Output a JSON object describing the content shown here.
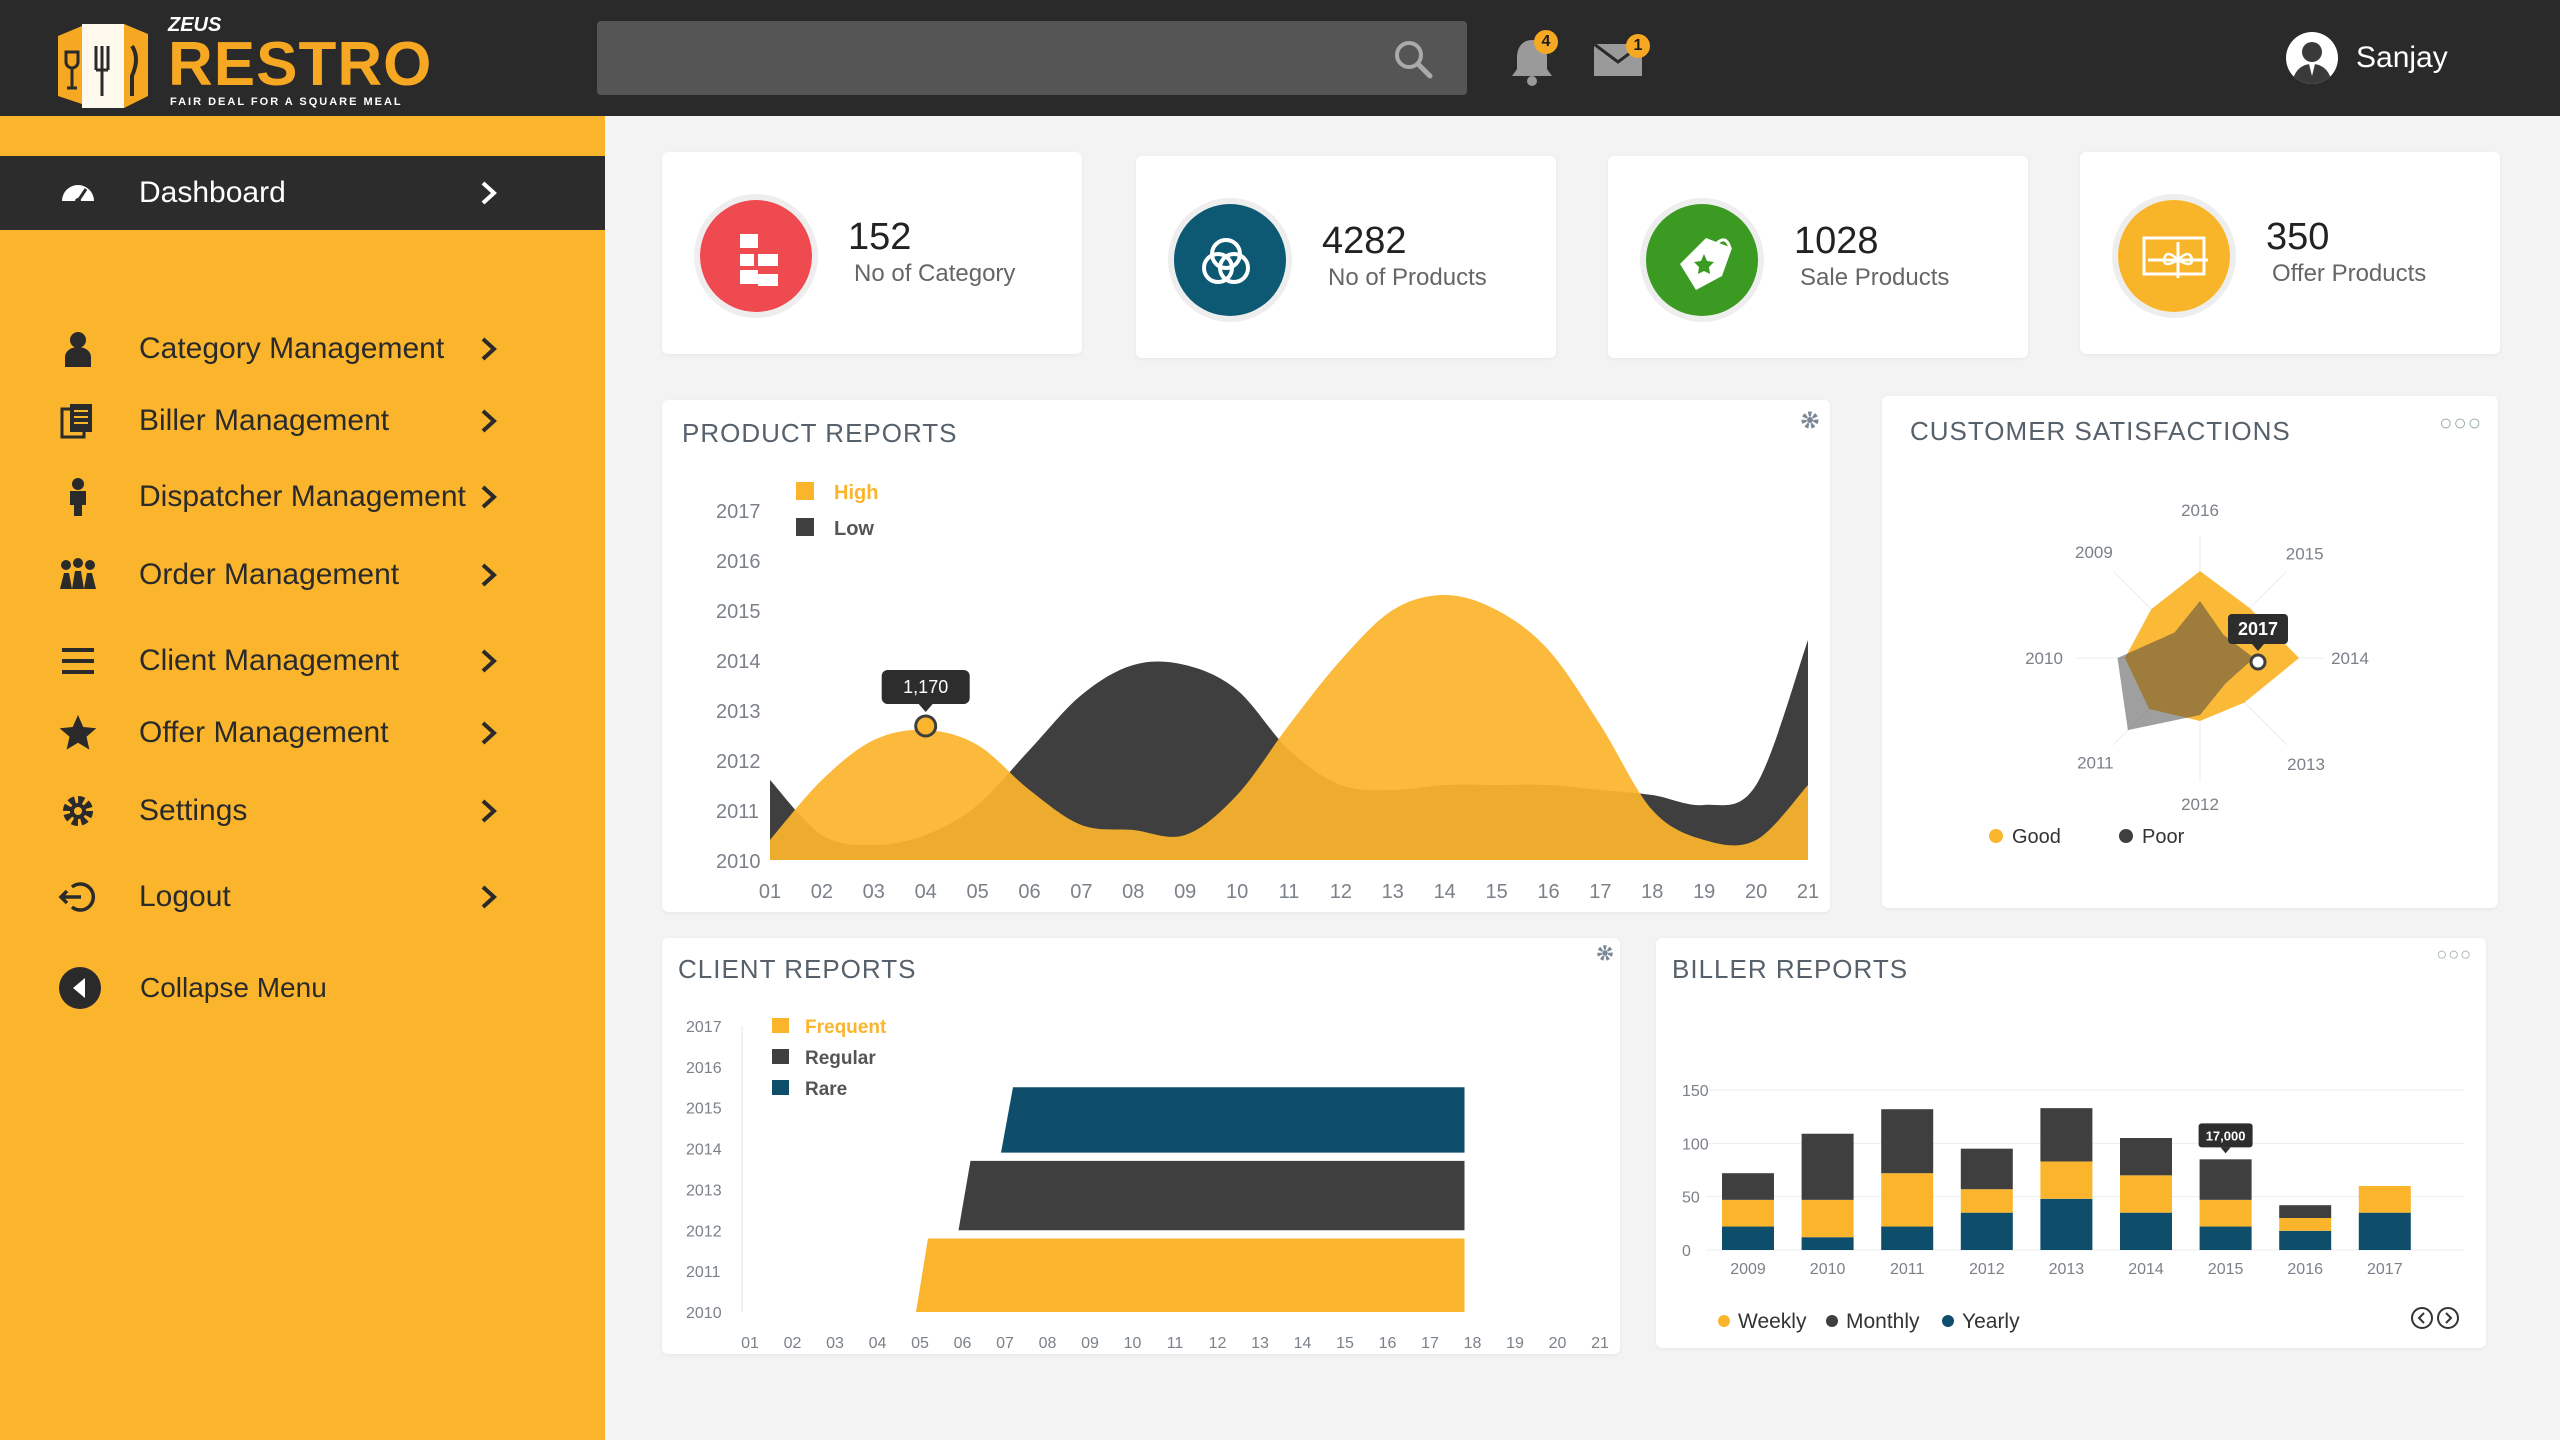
{
  "app": {
    "brand_top": "ZEUS",
    "brand": "RESTRO",
    "tagline": "FAIR DEAL FOR A SQUARE MEAL"
  },
  "header": {
    "search": {
      "placeholder": ""
    },
    "notifications": {
      "count": "4",
      "icon": "bell-icon"
    },
    "messages": {
      "count": "1",
      "icon": "mail-icon"
    },
    "user": {
      "name": "Sanjay"
    }
  },
  "sidebar": {
    "items": [
      {
        "label": "Dashboard",
        "icon": "dashboard-icon",
        "active": true
      },
      {
        "label": "Category Management",
        "icon": "user-icon"
      },
      {
        "label": "Biller Management",
        "icon": "documents-icon"
      },
      {
        "label": "Dispatcher Management",
        "icon": "person-icon"
      },
      {
        "label": "Order Management",
        "icon": "group-icon"
      },
      {
        "label": "Client Management",
        "icon": "menu-icon"
      },
      {
        "label": "Offer Management",
        "icon": "star-icon"
      },
      {
        "label": "Settings",
        "icon": "gear-icon"
      },
      {
        "label": "Logout",
        "icon": "logout-icon"
      }
    ],
    "collapse_label": "Collapse Menu"
  },
  "stats": [
    {
      "value": "152",
      "label": "No of Category",
      "color": "#ee4a4f",
      "icon": "hierarchy-icon"
    },
    {
      "value": "4282",
      "label": "No of Products",
      "color": "#0d5873",
      "icon": "circles-icon"
    },
    {
      "value": "1028",
      "label": "Sale Products",
      "color": "#3a9a21",
      "icon": "tag-icon"
    },
    {
      "value": "350",
      "label": "Offer Products",
      "color": "#f9b52a",
      "icon": "gift-icon"
    }
  ],
  "colors": {
    "accent": "#fbb52d",
    "dark": "#3f3f3f",
    "teal": "#0f4e6b",
    "topbar": "#2a2a2a"
  },
  "panels": {
    "product_reports": "PRODUCT REPORTS",
    "customer_satisfactions": "CUSTOMER SATISFACTIONS",
    "client_reports": "CLIENT REPORTS",
    "biller_reports": "BILLER REPORTS"
  },
  "chart_data": [
    {
      "id": "product",
      "type": "area",
      "x": [
        "01",
        "02",
        "03",
        "04",
        "05",
        "06",
        "07",
        "08",
        "09",
        "10",
        "11",
        "12",
        "13",
        "14",
        "15",
        "16",
        "17",
        "18",
        "19",
        "20",
        "21"
      ],
      "yticks": [
        "2010",
        "2011",
        "2012",
        "2013",
        "2014",
        "2015",
        "2016",
        "2017"
      ],
      "ylim": [
        2010,
        2017
      ],
      "series": [
        {
          "name": "High",
          "color": "#fbb52d",
          "values": [
            2010.4,
            2011.6,
            2012.4,
            2012.6,
            2012.3,
            2011.4,
            2010.7,
            2010.6,
            2010.5,
            2011.3,
            2012.7,
            2014.0,
            2015.0,
            2015.3,
            2015.0,
            2014.2,
            2012.7,
            2011.0,
            2010.4,
            2010.4,
            2011.5
          ]
        },
        {
          "name": "Low",
          "color": "#3f3f3f",
          "values": [
            2011.6,
            2010.5,
            2010.3,
            2010.5,
            2011.1,
            2012.2,
            2013.3,
            2013.9,
            2013.9,
            2013.4,
            2012.2,
            2011.5,
            2011.4,
            2011.5,
            2011.5,
            2011.5,
            2011.4,
            2011.3,
            2011.1,
            2011.5,
            2014.4
          ]
        }
      ],
      "tooltip": {
        "label": "1,170",
        "x": "04"
      }
    },
    {
      "id": "satisfaction",
      "type": "radar",
      "axes": [
        "2016",
        "2015",
        "2014",
        "2013",
        "2012",
        "2011",
        "2010",
        "2009"
      ],
      "series": [
        {
          "name": "Good",
          "color": "#fbb52d",
          "values": [
            0.58,
            0.47,
            0.66,
            0.42,
            0.42,
            0.48,
            0.5,
            0.46
          ]
        },
        {
          "name": "Poor",
          "color": "#3f3f3f",
          "values": [
            0.38,
            0.22,
            0.36,
            0.24,
            0.38,
            0.68,
            0.55,
            0.24
          ]
        }
      ],
      "tooltip": {
        "label": "2017"
      }
    },
    {
      "id": "client",
      "type": "bar",
      "orientation": "horizontal",
      "x": [
        "01",
        "02",
        "03",
        "04",
        "05",
        "06",
        "07",
        "08",
        "09",
        "10",
        "11",
        "12",
        "13",
        "14",
        "15",
        "16",
        "17",
        "18",
        "19",
        "20",
        "21"
      ],
      "yticks": [
        "2017",
        "2016",
        "2015",
        "2014",
        "2013",
        "2012",
        "2011",
        "2010"
      ],
      "series": [
        {
          "name": "Frequent",
          "color": "#fbb52d",
          "start": "05",
          "end": "18",
          "band": [
            "2010",
            "2011.8"
          ]
        },
        {
          "name": "Regular",
          "color": "#3f3f3f",
          "start": "06",
          "end": "18",
          "band": [
            "2012",
            "2013.7"
          ]
        },
        {
          "name": "Rare",
          "color": "#0f4e6b",
          "start": "07",
          "end": "18",
          "band": [
            "2013.9",
            "2015.5"
          ]
        }
      ]
    },
    {
      "id": "biller",
      "type": "bar",
      "stacked": true,
      "categories": [
        "2009",
        "2010",
        "2011",
        "2012",
        "2013",
        "2014",
        "2015",
        "2016",
        "2017"
      ],
      "yticks": [
        "150",
        "100",
        "50",
        "0"
      ],
      "ylim": [
        0,
        150
      ],
      "series": [
        {
          "name": "Yearly",
          "color": "#0f4e6b",
          "values": [
            22,
            12,
            22,
            35,
            48,
            35,
            22,
            18,
            35
          ]
        },
        {
          "name": "Weekly",
          "color": "#fbb52d",
          "values": [
            25,
            35,
            50,
            22,
            35,
            35,
            25,
            12,
            25
          ]
        },
        {
          "name": "Monthly",
          "color": "#3f3f3f",
          "values": [
            25,
            62,
            60,
            38,
            50,
            35,
            38,
            12,
            0
          ]
        }
      ],
      "tooltip": {
        "label": "17,000",
        "category": "2015"
      }
    }
  ]
}
